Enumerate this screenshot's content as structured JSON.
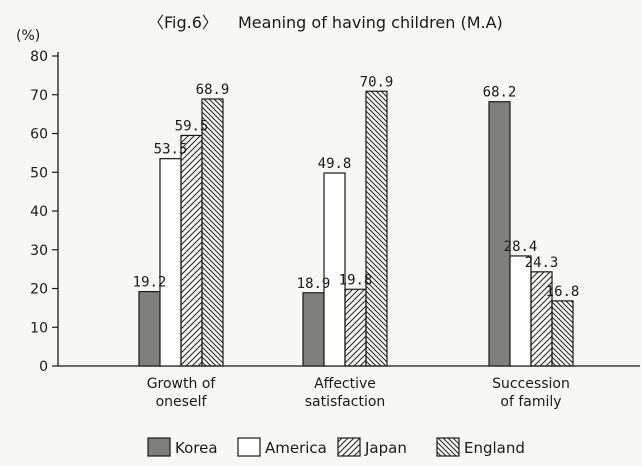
{
  "chart_data": {
    "type": "bar",
    "title_fig": "〈Fig.6〉",
    "title": "Meaning of having children (M.A)",
    "ylabel": "(%)",
    "ylim": [
      0,
      80
    ],
    "yticks": [
      0,
      10,
      20,
      30,
      40,
      50,
      60,
      70,
      80
    ],
    "categories": [
      [
        "Growth of",
        "oneself"
      ],
      [
        "Affective",
        "satisfaction"
      ],
      [
        "Succession",
        "of family"
      ]
    ],
    "series": [
      {
        "name": "Korea",
        "values": [
          19.2,
          18.9,
          68.2
        ],
        "labels": [
          "19.2",
          "18.9",
          "68.2"
        ],
        "fill": "#7f7f7c",
        "pattern": "solid"
      },
      {
        "name": "America",
        "values": [
          53.5,
          49.8,
          28.4
        ],
        "labels": [
          "53.5",
          "49.8",
          "28.4"
        ],
        "fill": "#ffffff",
        "pattern": "none"
      },
      {
        "name": "Japan",
        "values": [
          59.5,
          19.8,
          24.3
        ],
        "labels": [
          "59.5",
          "19.8",
          "24.3"
        ],
        "fill": "#ffffff",
        "pattern": "hatch-right"
      },
      {
        "name": "England",
        "values": [
          68.9,
          70.9,
          16.8
        ],
        "labels": [
          "68.9",
          "70.9",
          "16.8"
        ],
        "fill": "#ffffff",
        "pattern": "hatch-left"
      }
    ],
    "legend_position": "bottom",
    "grid": false
  }
}
